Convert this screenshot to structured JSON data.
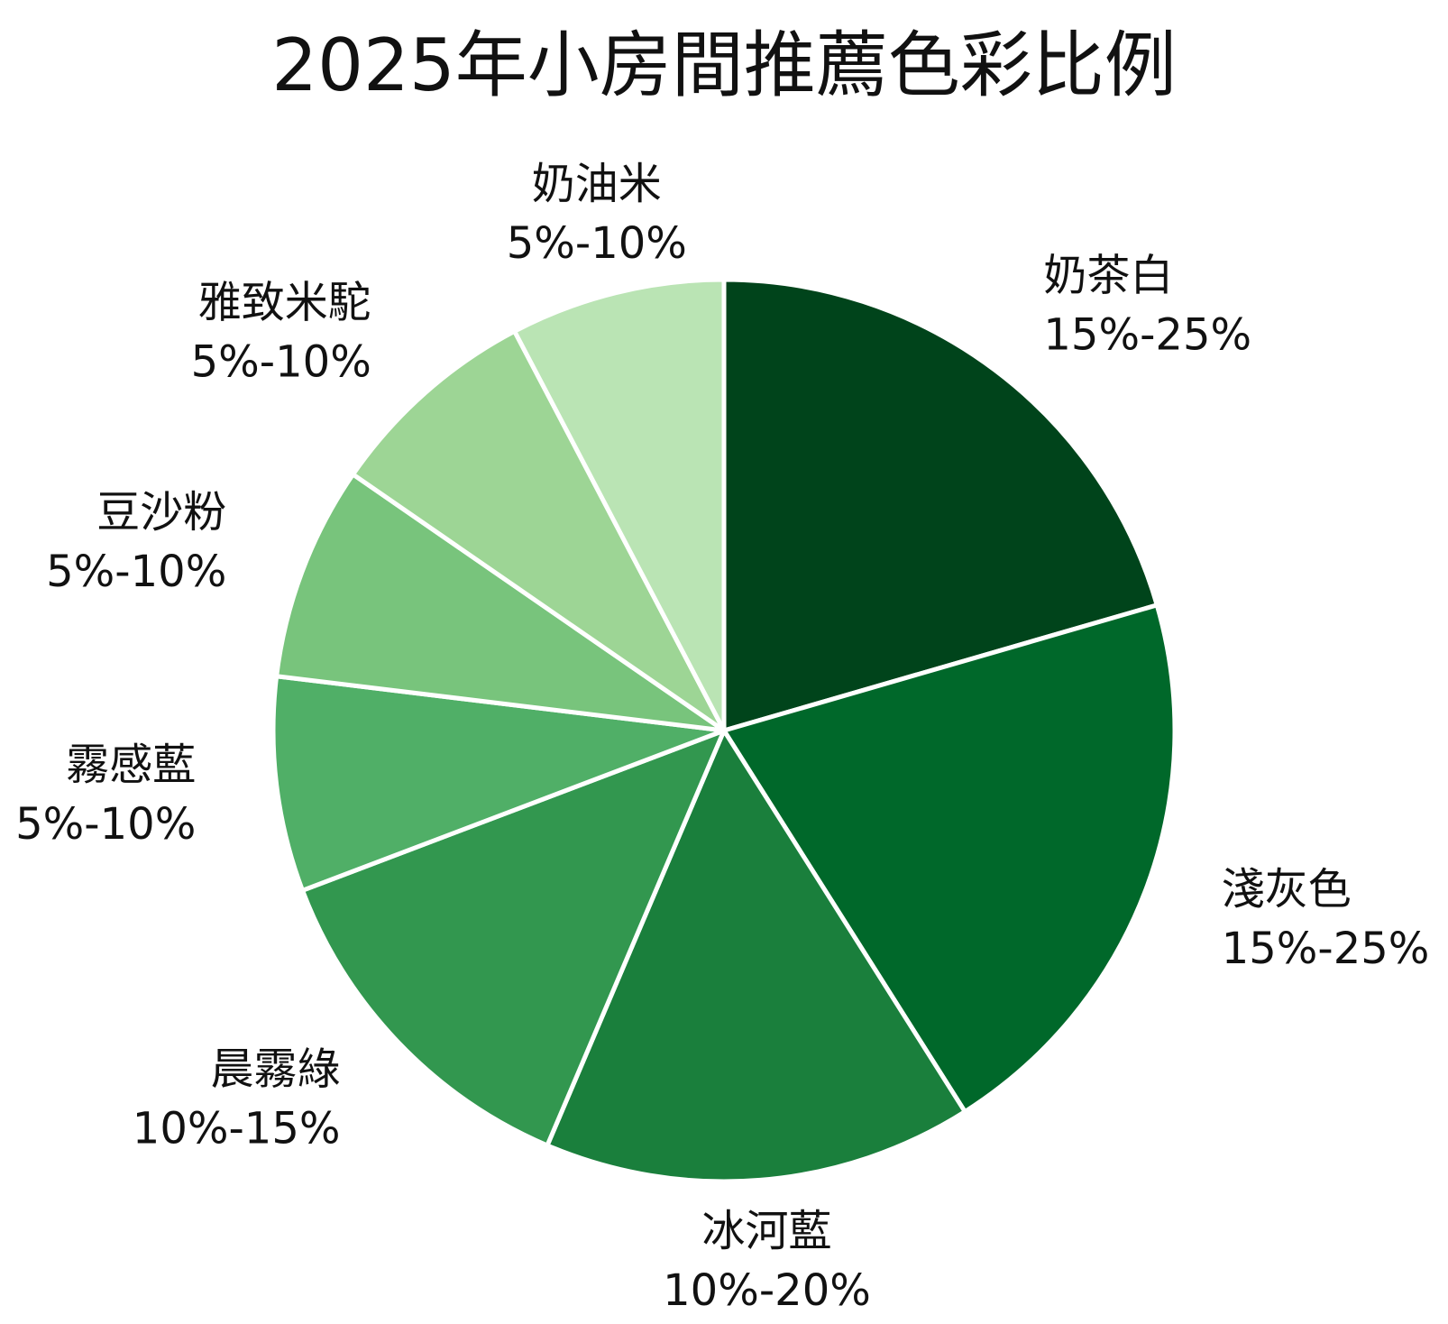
{
  "chart_data": {
    "type": "pie",
    "title": "2025年小房間推薦色彩比例",
    "slices": [
      {
        "name": "奶茶白",
        "range": "15%-25%",
        "value": 20,
        "color": "#00441b"
      },
      {
        "name": "淺灰色",
        "range": "15%-25%",
        "value": 20,
        "color": "#00682a"
      },
      {
        "name": "冰河藍",
        "range": "10%-20%",
        "value": 15,
        "color": "#1a7f3c"
      },
      {
        "name": "晨霧綠",
        "range": "10%-15%",
        "value": 12.5,
        "color": "#32974f"
      },
      {
        "name": "霧感藍",
        "range": "5%-10%",
        "value": 7.5,
        "color": "#50af67"
      },
      {
        "name": "豆沙粉",
        "range": "5%-10%",
        "value": 7.5,
        "color": "#78c47c"
      },
      {
        "name": "雅致米駝",
        "range": "5%-10%",
        "value": 7.5,
        "color": "#9dd595"
      },
      {
        "name": "奶油米",
        "range": "5%-10%",
        "value": 7.5,
        "color": "#bae4b4"
      }
    ],
    "start_angle": "12 o'clock",
    "direction": "clockwise",
    "legend": "none",
    "slice_border_color": "#ffffff"
  }
}
